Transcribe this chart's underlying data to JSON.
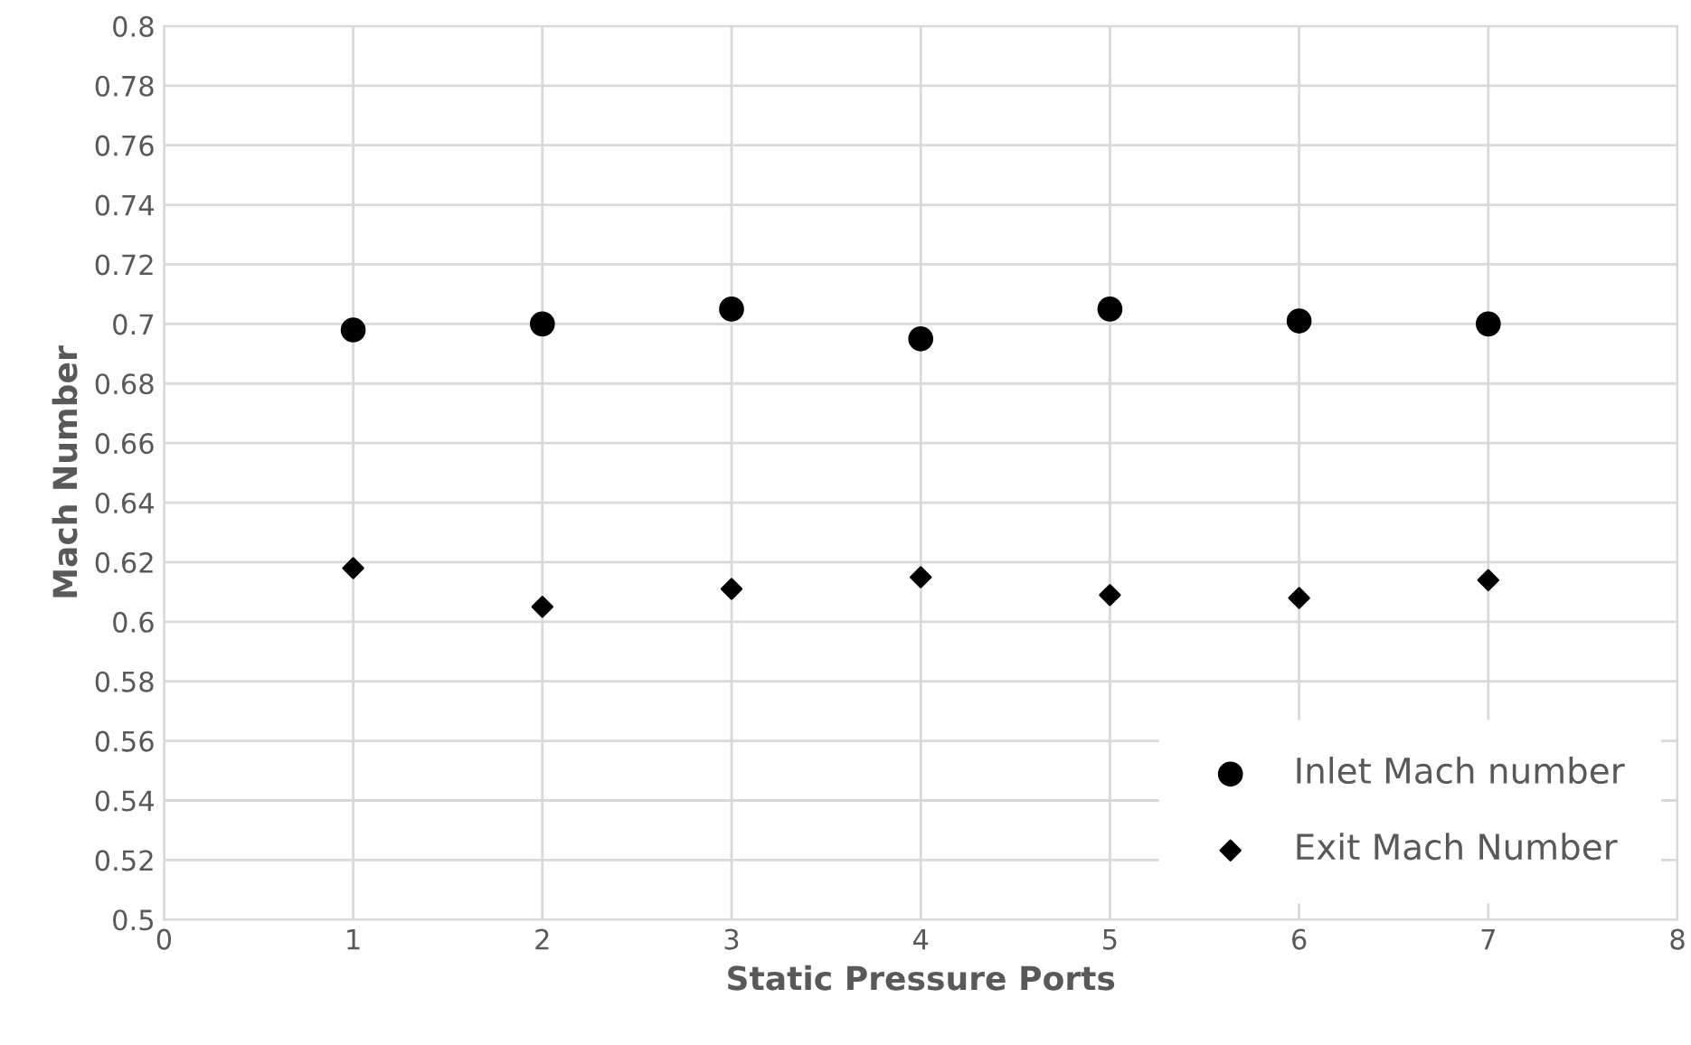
{
  "chart_data": {
    "type": "scatter",
    "xlabel": "Static Pressure Ports",
    "ylabel": "Mach Number",
    "x": [
      1,
      2,
      3,
      4,
      5,
      6,
      7
    ],
    "series": [
      {
        "name": "Inlet Mach number",
        "color": "#000000",
        "marker": "circle",
        "values": [
          0.698,
          0.7,
          0.705,
          0.695,
          0.705,
          0.701,
          0.7
        ]
      },
      {
        "name": "Exit Mach Number",
        "color": "#000000",
        "marker": "diamond",
        "values": [
          0.618,
          0.605,
          0.611,
          0.615,
          0.609,
          0.608,
          0.614
        ]
      }
    ],
    "xlim": [
      0,
      8
    ],
    "xticks": [
      0,
      1,
      2,
      3,
      4,
      5,
      6,
      7,
      8
    ],
    "ylim": [
      0.5,
      0.8
    ],
    "yticks": [
      0.5,
      0.52,
      0.54,
      0.56,
      0.58,
      0.6,
      0.62,
      0.64,
      0.66,
      0.68,
      0.7,
      0.72,
      0.74,
      0.76,
      0.78,
      0.8
    ],
    "grid": true,
    "legend": "bottom right"
  }
}
